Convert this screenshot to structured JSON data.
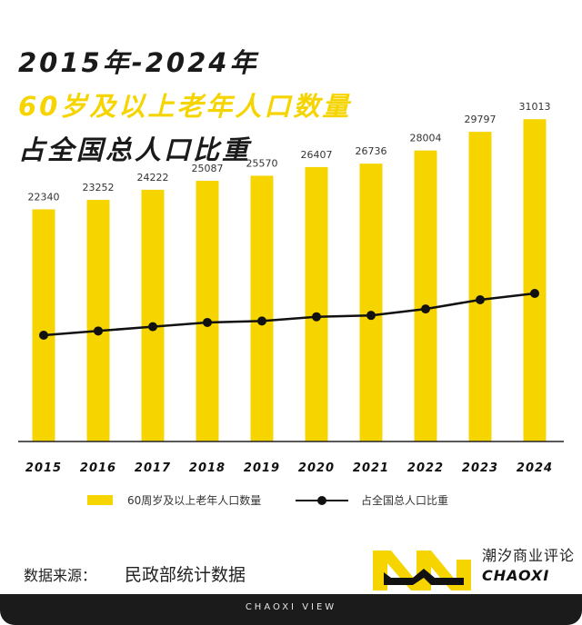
{
  "title": {
    "line1": "2015年-2024年",
    "line2": "60岁及以上老年人口数量",
    "line3": "占全国总人口比重"
  },
  "chart_data": {
    "type": "bar",
    "categories": [
      "2015",
      "2016",
      "2017",
      "2018",
      "2019",
      "2020",
      "2021",
      "2022",
      "2023",
      "2024"
    ],
    "series": [
      {
        "name": "60周岁及以上老年人口数量",
        "type": "bar",
        "values": [
          22340,
          23252,
          24222,
          25087,
          25570,
          26407,
          26736,
          28004,
          29797,
          31013
        ]
      },
      {
        "name": "占全国总人口比重",
        "type": "line",
        "values": [
          16.1,
          16.7,
          17.3,
          17.9,
          18.1,
          18.7,
          18.9,
          19.8,
          21.1,
          22.0
        ]
      }
    ],
    "colors": {
      "bar": "#f5d400",
      "line": "#111111"
    }
  },
  "legend": {
    "bar_label": "60周岁及以上老年人口数量",
    "line_label": "占全国总人口比重"
  },
  "source": {
    "label": "数据来源：",
    "value": "民政部统计数据"
  },
  "brand": {
    "name": "潮汐商业评论",
    "en": "CHAOXI"
  },
  "footer": "CHAOXI VIEW"
}
